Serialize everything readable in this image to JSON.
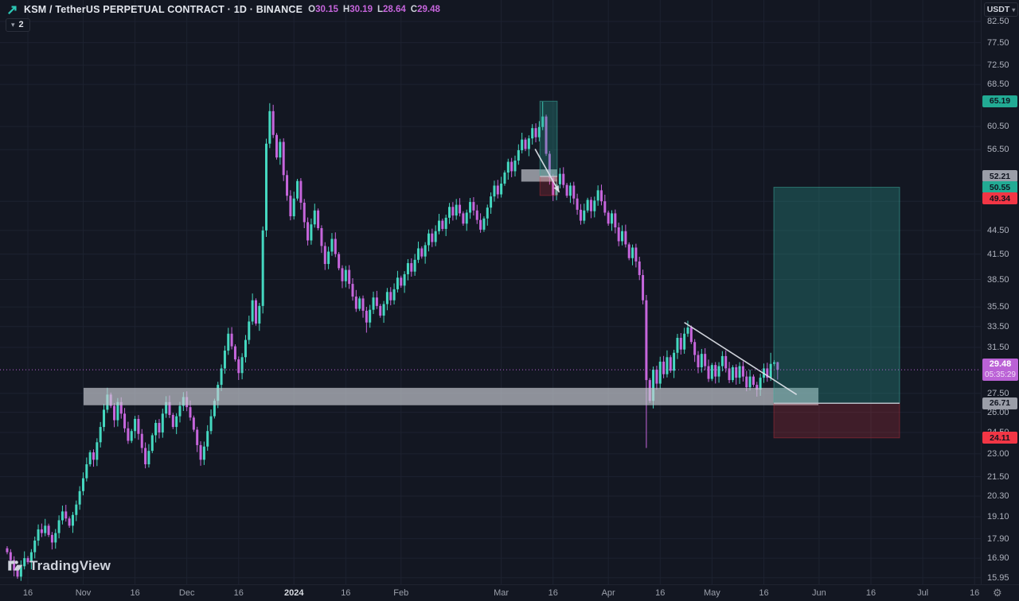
{
  "toolbar": {
    "symbol_title": "KSM / TetherUS PERPETUAL CONTRACT · 1D · BINANCE",
    "ohlc": {
      "o_label": "O",
      "o": "30.15",
      "h_label": "H",
      "h": "30.19",
      "l_label": "L",
      "l": "28.64",
      "c_label": "C",
      "c": "29.48"
    },
    "objects_count": "2",
    "objects_chevron": "▾"
  },
  "price_axis": {
    "currency": "USDT",
    "currency_chevron": "▾",
    "ticks": [
      "82.50",
      "77.50",
      "72.50",
      "68.50",
      "60.50",
      "56.50",
      "48.50",
      "44.50",
      "41.50",
      "38.50",
      "35.50",
      "33.50",
      "31.50",
      "27.50",
      "26.00",
      "24.50",
      "23.00",
      "21.50",
      "20.30",
      "19.10",
      "17.90",
      "16.90",
      "15.95"
    ],
    "tick_prices": [
      82.5,
      77.5,
      72.5,
      68.5,
      60.5,
      56.5,
      48.5,
      44.5,
      41.5,
      38.5,
      35.5,
      33.5,
      31.5,
      27.5,
      26.0,
      24.5,
      23.0,
      21.5,
      20.3,
      19.1,
      17.9,
      16.9,
      15.95
    ],
    "labels": [
      {
        "text": "65.19",
        "price": 65.19,
        "kind": "target",
        "dy": 0
      },
      {
        "text": "52.21",
        "price": 52.21,
        "kind": "entry",
        "dy": 0
      },
      {
        "text": "50.55",
        "price": 50.55,
        "kind": "target",
        "dy": 0
      },
      {
        "text": "49.34",
        "price": 49.34,
        "kind": "stop",
        "dy": 4
      },
      {
        "text": "26.71",
        "price": 26.71,
        "kind": "entry",
        "dy": 0
      },
      {
        "text": "24.11",
        "price": 24.11,
        "kind": "stop",
        "dy": 0
      }
    ],
    "last_price": {
      "text": "29.48",
      "price": 29.48,
      "countdown": "05:35:29"
    }
  },
  "time_axis": {
    "ticks": [
      {
        "day": 6,
        "label": "16"
      },
      {
        "day": 22,
        "label": "Nov"
      },
      {
        "day": 37,
        "label": "16"
      },
      {
        "day": 52,
        "label": "Dec"
      },
      {
        "day": 67,
        "label": "16"
      },
      {
        "day": 83,
        "label": "2024",
        "year": true
      },
      {
        "day": 98,
        "label": "16"
      },
      {
        "day": 114,
        "label": "Feb"
      },
      {
        "day": 143,
        "label": "Mar"
      },
      {
        "day": 158,
        "label": "16"
      },
      {
        "day": 174,
        "label": "Apr"
      },
      {
        "day": 189,
        "label": "16"
      },
      {
        "day": 204,
        "label": "May"
      },
      {
        "day": 219,
        "label": "16"
      },
      {
        "day": 235,
        "label": "Jun"
      },
      {
        "day": 250,
        "label": "16"
      },
      {
        "day": 265,
        "label": "Jul"
      },
      {
        "day": 280,
        "label": "16"
      }
    ],
    "gear_glyph": "⚙"
  },
  "watermark": {
    "text": "TradingView"
  },
  "chart_data": {
    "type": "candlestick",
    "title": "KSM / TetherUS Perpetual Contract, 1D, Binance",
    "scale": "logarithmic",
    "x_start_label": "day 0 ≈ 2023-10-10, one bar per day",
    "ylim": [
      15.6,
      83.5
    ],
    "grid": true,
    "closes": [
      17.2,
      16.8,
      16.3,
      16.0,
      16.5,
      16.9,
      16.7,
      17.2,
      17.8,
      18.4,
      18.2,
      18.6,
      18.1,
      17.7,
      18.2,
      18.9,
      19.4,
      19.0,
      18.6,
      19.2,
      19.8,
      20.6,
      21.4,
      22.3,
      23.1,
      22.6,
      23.8,
      24.9,
      26.2,
      27.4,
      26.5,
      25.4,
      26.8,
      25.9,
      24.8,
      23.9,
      24.6,
      25.5,
      24.4,
      23.4,
      22.3,
      23.2,
      24.3,
      25.2,
      24.5,
      25.9,
      26.8,
      25.8,
      24.9,
      25.7,
      26.5,
      27.2,
      26.4,
      25.6,
      24.7,
      23.6,
      22.6,
      23.5,
      24.6,
      25.7,
      26.9,
      28.2,
      29.6,
      31.2,
      32.8,
      31.6,
      30.4,
      29.2,
      30.6,
      32.2,
      34.0,
      36.2,
      33.8,
      35.6,
      44.5,
      57.5,
      63.3,
      59.0,
      55.2,
      57.8,
      52.4,
      49.3,
      46.4,
      48.9,
      51.5,
      48.3,
      45.6,
      43.2,
      45.3,
      47.2,
      44.8,
      42.5,
      40.3,
      41.8,
      43.4,
      41.5,
      39.8,
      38.3,
      39.6,
      38.0,
      36.6,
      35.3,
      36.4,
      35.1,
      33.9,
      35.2,
      36.5,
      35.6,
      34.6,
      35.8,
      37.1,
      36.2,
      37.4,
      38.7,
      37.8,
      39.1,
      40.4,
      39.4,
      40.8,
      42.2,
      41.2,
      42.6,
      44.1,
      43.0,
      44.4,
      45.8,
      44.7,
      46.2,
      47.7,
      46.5,
      48.0,
      46.8,
      45.4,
      46.9,
      48.4,
      47.2,
      45.9,
      44.6,
      46.1,
      47.6,
      49.2,
      50.8,
      49.5,
      51.1,
      52.8,
      54.5,
      53.0,
      54.7,
      56.4,
      58.2,
      56.6,
      58.4,
      60.2,
      58.6,
      60.4,
      62.3,
      55.8,
      52.0,
      49.4,
      51.0,
      52.6,
      50.9,
      49.3,
      50.8,
      48.9,
      47.3,
      45.8,
      47.2,
      48.7,
      47.1,
      48.6,
      50.1,
      48.5,
      46.9,
      45.4,
      46.8,
      44.9,
      43.1,
      44.4,
      42.7,
      41.0,
      42.3,
      40.6,
      39.0,
      36.2,
      28.6,
      26.9,
      29.5,
      28.3,
      30.2,
      29.1,
      30.6,
      29.4,
      31.0,
      32.4,
      31.3,
      32.8,
      33.4,
      32.0,
      30.8,
      29.7,
      30.9,
      29.8,
      28.7,
      29.9,
      28.9,
      29.8,
      30.7,
      29.6,
      28.6,
      29.7,
      28.8,
      29.8,
      28.9,
      28.0,
      28.9,
      28.2,
      27.8,
      28.8,
      29.6,
      28.8,
      30.0,
      30.15
    ],
    "wick_overrides": {
      "3": {
        "l": 15.9
      },
      "76": {
        "h": 64.8
      },
      "104": {
        "l": 32.9
      },
      "155": {
        "h": 65.1
      },
      "185": {
        "l": 23.4
      },
      "221": {
        "h": 31.0
      }
    },
    "last_candle": {
      "o": 30.15,
      "h": 30.19,
      "l": 28.64,
      "c": 29.48
    },
    "drawings": {
      "support_zone": {
        "from_day": 22.1,
        "to_day": 234.8,
        "top": 27.95,
        "bottom": 26.55
      },
      "march_entry_zone": {
        "from_day": 148.8,
        "to_day": 159.2,
        "top": 53.3,
        "bottom": 51.4
      },
      "march_position": {
        "from_day": 154.2,
        "to_day": 159.2,
        "entry": 52.21,
        "stop": 49.34,
        "target": 65.19
      },
      "main_position": {
        "from_day": 221.9,
        "to_day": 258.3,
        "entry": 26.71,
        "stop": 24.11,
        "target": 50.55
      },
      "trendline": {
        "from": [
          196,
          33.9
        ],
        "to": [
          228.5,
          27.4
        ]
      },
      "arrow": {
        "from": [
          152.8,
          56.6
        ],
        "to": [
          159.8,
          49.8
        ]
      }
    }
  },
  "colors": {
    "bg": "#131722",
    "grid": "#1d2230",
    "up": "#45d8c0",
    "down": "#c666dc",
    "zone_gray": "rgba(201,204,211,0.68)",
    "profit_fill": "rgba(42,157,143,0.32)",
    "profit_stroke": "rgba(60,175,160,0.55)",
    "loss_fill": "rgba(242,54,69,0.20)",
    "loss_stroke": "rgba(242,54,69,0.35)",
    "entry_line": "#b9bdc6",
    "white_line": "#dfe3ea",
    "label_entry_bg": "#9b9ea8",
    "label_target_bg": "#22ab94",
    "label_stop_bg": "#f23645",
    "label_dark_text": "#10141f",
    "last_bg": "#bb62d6",
    "last_line": "#bb62d6"
  }
}
